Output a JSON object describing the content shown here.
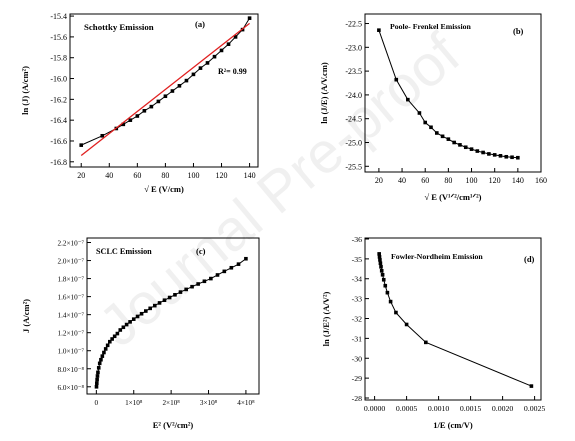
{
  "watermark": {
    "text": "Journal Pre-proof"
  },
  "chart_data": [
    {
      "panel": "a",
      "type": "line",
      "title": "Schottky Emission",
      "panel_label": "(a)",
      "xlabel": "√ E (V/cm)",
      "ylabel": "ln (J) (A/cm²)",
      "xlim": [
        12,
        146
      ],
      "ylim": [
        -16.85,
        -15.38
      ],
      "xticks": [
        20,
        40,
        60,
        80,
        100,
        120,
        140
      ],
      "yticks": [
        -16.8,
        -16.6,
        -16.4,
        -16.2,
        -16.0,
        -15.8,
        -15.6,
        -15.4
      ],
      "yticks_labels": [
        "-16.8",
        "-16.6",
        "-16.4",
        "-16.2",
        "-16.0",
        "-15.8",
        "-15.6",
        "-15.4"
      ],
      "annotation": "R²= 0.99",
      "series": [
        {
          "marker": "square",
          "color": "#000000",
          "x": [
            20,
            35,
            45,
            50,
            55,
            60,
            65,
            70,
            75,
            80,
            85,
            90,
            95,
            100,
            105,
            110,
            115,
            120,
            125,
            130,
            135,
            140
          ],
          "y": [
            -16.64,
            -16.55,
            -16.48,
            -16.44,
            -16.4,
            -16.36,
            -16.31,
            -16.27,
            -16.22,
            -16.17,
            -16.12,
            -16.07,
            -16.02,
            -15.96,
            -15.9,
            -15.85,
            -15.79,
            -15.73,
            -15.67,
            -15.6,
            -15.53,
            -15.42
          ]
        },
        {
          "marker": "none",
          "color": "#e02020",
          "x": [
            20,
            140
          ],
          "y": [
            -16.74,
            -15.47
          ]
        }
      ]
    },
    {
      "panel": "b",
      "type": "line",
      "title": "Poole- Frenkel Emission",
      "panel_label": "(b)",
      "xlabel": "√ E (V¹ᐟ²/cm¹ᐟ²)",
      "ylabel": "ln (J/E) (A/V.cm)",
      "xlim": [
        8,
        160
      ],
      "ylim": [
        -25.62,
        -22.3
      ],
      "xticks": [
        20,
        40,
        60,
        80,
        100,
        120,
        140,
        160
      ],
      "yticks": [
        -25.5,
        -25.0,
        -24.5,
        -24.0,
        -23.5,
        -23.0,
        -22.5
      ],
      "yticks_labels": [
        "-25.5",
        "-25.0",
        "-24.5",
        "-24.0",
        "-23.5",
        "-23.0",
        "-22.5"
      ],
      "series": [
        {
          "marker": "square",
          "color": "#000000",
          "x": [
            20,
            35,
            45,
            55,
            60,
            65,
            70,
            75,
            80,
            85,
            90,
            95,
            100,
            105,
            110,
            115,
            120,
            125,
            130,
            135,
            140
          ],
          "y": [
            -22.64,
            -23.68,
            -24.1,
            -24.38,
            -24.58,
            -24.68,
            -24.8,
            -24.87,
            -24.93,
            -25.0,
            -25.05,
            -25.1,
            -25.14,
            -25.18,
            -25.21,
            -25.24,
            -25.26,
            -25.28,
            -25.3,
            -25.31,
            -25.32
          ]
        }
      ]
    },
    {
      "panel": "c",
      "type": "line",
      "title": "SCLC Emission",
      "panel_label": "(c)",
      "xlabel": "E² (V²/cm²)",
      "ylabel": "J (A/cm²)",
      "xlim": [
        -25000000.0,
        435000000.0
      ],
      "ylim": [
        5.2e-08,
        2.25e-07
      ],
      "xticks": [
        0,
        100000000,
        200000000,
        300000000,
        400000000
      ],
      "xticks_labels": [
        "0",
        "1×10⁸",
        "2×10⁸",
        "3×10⁸",
        "4×10⁸"
      ],
      "yticks": [
        6e-08,
        8e-08,
        1e-07,
        1.2e-07,
        1.4e-07,
        1.6e-07,
        1.8e-07,
        2e-07,
        2.2e-07
      ],
      "yticks_labels": [
        "6.0×10⁻⁸",
        "8.0×10⁻⁸",
        "1.0×10⁻⁷",
        "1.2×10⁻⁷",
        "1.4×10⁻⁷",
        "1.6×10⁻⁷",
        "1.8×10⁻⁷",
        "2.0×10⁻⁷",
        "2.2×10⁻⁷"
      ],
      "series": [
        {
          "marker": "square",
          "color": "#000000",
          "x": [
            400000,
            1225000,
            2025000,
            3025000,
            4225000,
            6400000,
            9000000,
            12250000,
            16000000,
            20250000,
            25000000,
            30250000,
            36000000,
            42250000,
            49000000,
            56250000,
            64000000,
            72250000,
            81000000,
            90250000,
            100000000,
            110250000,
            121000000,
            132250000,
            144000000,
            156250000,
            169000000,
            182250000,
            196000000,
            210250000,
            225000000,
            240250000,
            256000000,
            272250000,
            289000000,
            306250000,
            324000000,
            342250000,
            361000000,
            380250000,
            400000000
          ],
          "y": [
            6e-08,
            6.4e-08,
            6.8e-08,
            7.2e-08,
            7.6e-08,
            8.1e-08,
            8.6e-08,
            9e-08,
            9.4e-08,
            9.8e-08,
            1.02e-07,
            1.06e-07,
            1.1e-07,
            1.13e-07,
            1.16e-07,
            1.19e-07,
            1.23e-07,
            1.26e-07,
            1.29e-07,
            1.32e-07,
            1.35e-07,
            1.38e-07,
            1.41e-07,
            1.44e-07,
            1.47e-07,
            1.5e-07,
            1.53e-07,
            1.56e-07,
            1.59e-07,
            1.62e-07,
            1.65e-07,
            1.68e-07,
            1.71e-07,
            1.74e-07,
            1.77e-07,
            1.8e-07,
            1.84e-07,
            1.88e-07,
            1.92e-07,
            1.96e-07,
            2.02e-07
          ]
        }
      ]
    },
    {
      "panel": "d",
      "type": "line",
      "title": "Fowler-Nordheim Emission",
      "panel_label": "(d)",
      "xlabel": "1/E (cm/V)",
      "ylabel": "ln (J/E²) (A/V²)",
      "xlim": [
        -0.00015,
        0.0026
      ],
      "ylim": [
        -36.05,
        -27.9
      ],
      "y_inverted": true,
      "xticks": [
        0.0,
        0.0005,
        0.001,
        0.0015,
        0.002,
        0.0025
      ],
      "xticks_labels": [
        "0.0000",
        "0.0005",
        "0.0010",
        "0.0015",
        "0.0020",
        "0.0025"
      ],
      "yticks": [
        -36,
        -35,
        -34,
        -33,
        -32,
        -31,
        -30,
        -29,
        -28
      ],
      "yticks_labels": [
        "-36",
        "-35",
        "-34",
        "-33",
        "-32",
        "-31",
        "-30",
        "-29",
        "-28"
      ],
      "series": [
        {
          "marker": "square",
          "color": "#000000",
          "x": [
            7.14e-05,
            7.69e-05,
            8.33e-05,
            9.09e-05,
            0.0001,
            0.0001111,
            0.000125,
            0.0001429,
            0.0001667,
            0.0002,
            0.00025,
            0.0003333,
            0.0005,
            0.0008,
            0.00245
          ],
          "y": [
            -35.25,
            -35.1,
            -34.95,
            -34.78,
            -34.6,
            -34.4,
            -34.2,
            -33.95,
            -33.65,
            -33.3,
            -32.85,
            -32.3,
            -31.7,
            -30.8,
            -28.6
          ]
        }
      ]
    }
  ]
}
